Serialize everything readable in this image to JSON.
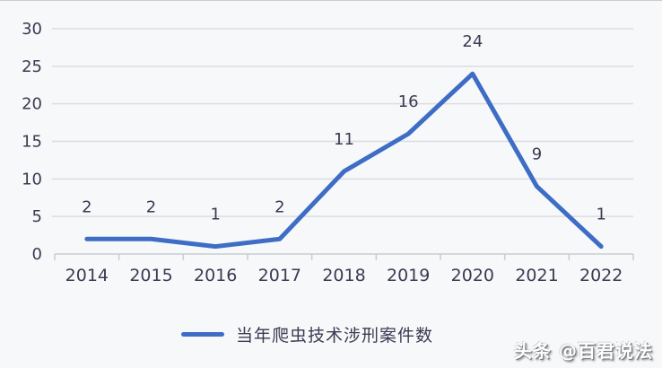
{
  "chart_data": {
    "type": "line",
    "categories": [
      "2014",
      "2015",
      "2016",
      "2017",
      "2018",
      "2019",
      "2020",
      "2021",
      "2022"
    ],
    "series": [
      {
        "name": "当年爬虫技术涉刑案件数",
        "values": [
          2,
          2,
          1,
          2,
          11,
          16,
          24,
          9,
          1
        ]
      }
    ],
    "data_labels": [
      "2",
      "2",
      "1",
      "2",
      "11",
      "16",
      "24",
      "9",
      "1"
    ],
    "ytick_labels": [
      "0",
      "5",
      "10",
      "15",
      "20",
      "25",
      "30"
    ],
    "ylim": [
      0,
      30
    ],
    "ytick_step": 5,
    "grid": true,
    "legend_position": "bottom",
    "title": "",
    "xlabel": "",
    "ylabel": ""
  },
  "legend": {
    "label": "当年爬虫技术涉刑案件数"
  },
  "watermark": {
    "text": "头条 @百君说法"
  },
  "colors": {
    "line": "#3e6dc5",
    "text": "#3b3b52",
    "gridline": "#dadce2",
    "axis": "#c9ccd2",
    "background": "#f7f8fa"
  }
}
